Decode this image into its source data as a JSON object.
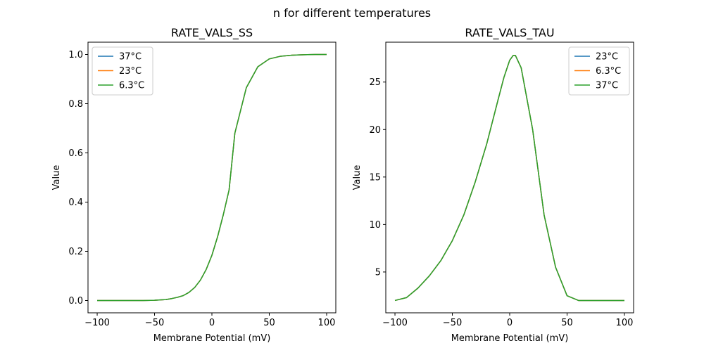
{
  "figure": {
    "suptitle": "n for different temperatures"
  },
  "chart_data": [
    {
      "type": "line",
      "title": "RATE_VALS_SS",
      "xlabel": "Membrane Potential (mV)",
      "ylabel": "Value",
      "xlim": [
        -108,
        108
      ],
      "ylim": [
        -0.05,
        1.05
      ],
      "xticks": [
        -100,
        -50,
        0,
        50,
        100
      ],
      "yticks": [
        0.0,
        0.2,
        0.4,
        0.6,
        0.8,
        1.0
      ],
      "ytick_format": 1,
      "grid": false,
      "legend_position": "top-left",
      "x": [
        -100,
        -90,
        -80,
        -70,
        -60,
        -50,
        -40,
        -35,
        -30,
        -25,
        -20,
        -15,
        -10,
        -5,
        0,
        5,
        10,
        15,
        20,
        30,
        40,
        50,
        60,
        70,
        80,
        90,
        100
      ],
      "series": [
        {
          "name": "37°C",
          "color": "#1f77b4",
          "values": [
            0.0,
            0.0,
            0.0,
            0.0,
            0.0,
            0.001,
            0.004,
            0.008,
            0.013,
            0.02,
            0.033,
            0.053,
            0.083,
            0.126,
            0.184,
            0.26,
            0.35,
            0.45,
            0.68,
            0.865,
            0.95,
            0.982,
            0.993,
            0.997,
            0.999,
            1.0,
            1.0
          ]
        },
        {
          "name": "23°C",
          "color": "#ff7f0e",
          "values": [
            0.0,
            0.0,
            0.0,
            0.0,
            0.0,
            0.001,
            0.004,
            0.008,
            0.013,
            0.02,
            0.033,
            0.053,
            0.083,
            0.126,
            0.184,
            0.26,
            0.35,
            0.45,
            0.68,
            0.865,
            0.95,
            0.982,
            0.993,
            0.997,
            0.999,
            1.0,
            1.0
          ]
        },
        {
          "name": "6.3°C",
          "color": "#2ca02c",
          "values": [
            0.0,
            0.0,
            0.0,
            0.0,
            0.0,
            0.001,
            0.004,
            0.008,
            0.013,
            0.02,
            0.033,
            0.053,
            0.083,
            0.126,
            0.184,
            0.26,
            0.35,
            0.45,
            0.68,
            0.865,
            0.95,
            0.982,
            0.993,
            0.997,
            0.999,
            1.0,
            1.0
          ]
        }
      ]
    },
    {
      "type": "line",
      "title": "RATE_VALS_TAU",
      "xlabel": "Membrane Potential (mV)",
      "ylabel": "Value",
      "xlim": [
        -108,
        108
      ],
      "ylim": [
        0.7,
        29.2
      ],
      "xticks": [
        -100,
        -50,
        0,
        50,
        100
      ],
      "yticks": [
        5,
        10,
        15,
        20,
        25
      ],
      "ytick_format": 0,
      "grid": false,
      "legend_position": "top-right",
      "x": [
        -100,
        -90,
        -80,
        -70,
        -60,
        -50,
        -40,
        -30,
        -20,
        -10,
        -5,
        0,
        3,
        5,
        10,
        20,
        30,
        40,
        50,
        60,
        70,
        80,
        90,
        100
      ],
      "series": [
        {
          "name": "23°C",
          "color": "#1f77b4",
          "values": [
            2.0,
            2.3,
            3.3,
            4.6,
            6.2,
            8.3,
            11.0,
            14.5,
            18.5,
            23.2,
            25.5,
            27.3,
            27.8,
            27.8,
            26.5,
            20.0,
            11.0,
            5.5,
            2.5,
            2.0,
            2.0,
            2.0,
            2.0,
            2.0
          ]
        },
        {
          "name": "6.3°C",
          "color": "#ff7f0e",
          "values": [
            2.0,
            2.3,
            3.3,
            4.6,
            6.2,
            8.3,
            11.0,
            14.5,
            18.5,
            23.2,
            25.5,
            27.3,
            27.8,
            27.8,
            26.5,
            20.0,
            11.0,
            5.5,
            2.5,
            2.0,
            2.0,
            2.0,
            2.0,
            2.0
          ]
        },
        {
          "name": "37°C",
          "color": "#2ca02c",
          "values": [
            2.0,
            2.3,
            3.3,
            4.6,
            6.2,
            8.3,
            11.0,
            14.5,
            18.5,
            23.2,
            25.5,
            27.3,
            27.8,
            27.8,
            26.5,
            20.0,
            11.0,
            5.5,
            2.5,
            2.0,
            2.0,
            2.0,
            2.0,
            2.0
          ]
        }
      ]
    }
  ]
}
